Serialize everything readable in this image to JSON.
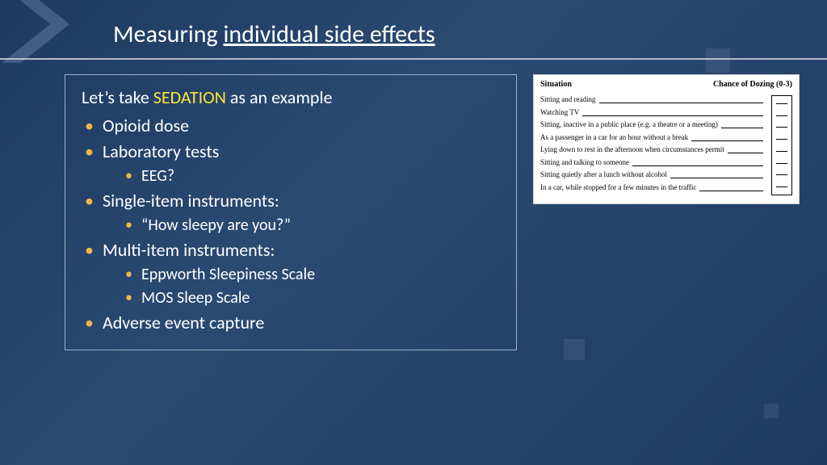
{
  "colors": {
    "background_from": "#1e3a5f",
    "background_to": "#1f3b60",
    "text": "#ffffff",
    "highlight": "#ffe23f",
    "bullet": "#f0b64a",
    "rule": "#c9d2de",
    "box_border": "#9fb2c9",
    "card_bg": "#ffffff",
    "card_text": "#000000"
  },
  "title": {
    "plain": "Measuring ",
    "underlined": "individual side effects"
  },
  "lead": {
    "before": "Let’s take ",
    "highlight": "SEDATION",
    "after": " as an example"
  },
  "bullets": [
    {
      "text": "Opioid dose",
      "children": []
    },
    {
      "text": "Laboratory tests",
      "children": [
        "EEG?"
      ]
    },
    {
      "text": "Single-item instruments:",
      "children": [
        "“How sleepy are you?”"
      ]
    },
    {
      "text": "Multi-item instruments:",
      "children": [
        "Eppworth Sleepiness Scale",
        "MOS Sleep Scale"
      ]
    },
    {
      "text": "Adverse event capture",
      "children": []
    }
  ],
  "epworth": {
    "header_left": "Situation",
    "header_right": "Chance of Dozing (0-3)",
    "rows": [
      "Sitting and reading",
      "Watching TV",
      "Sitting, inactive in a public place (e.g. a theatre or a meeting)",
      "As a passenger in a car for an hour without a break",
      "Lying down to rest in the afternoon when circumstances permit",
      "Sitting and talking to someone",
      "Sitting quietly after a lunch without alcohol",
      "In a car, while stopped for a few minutes in the traffic"
    ]
  }
}
